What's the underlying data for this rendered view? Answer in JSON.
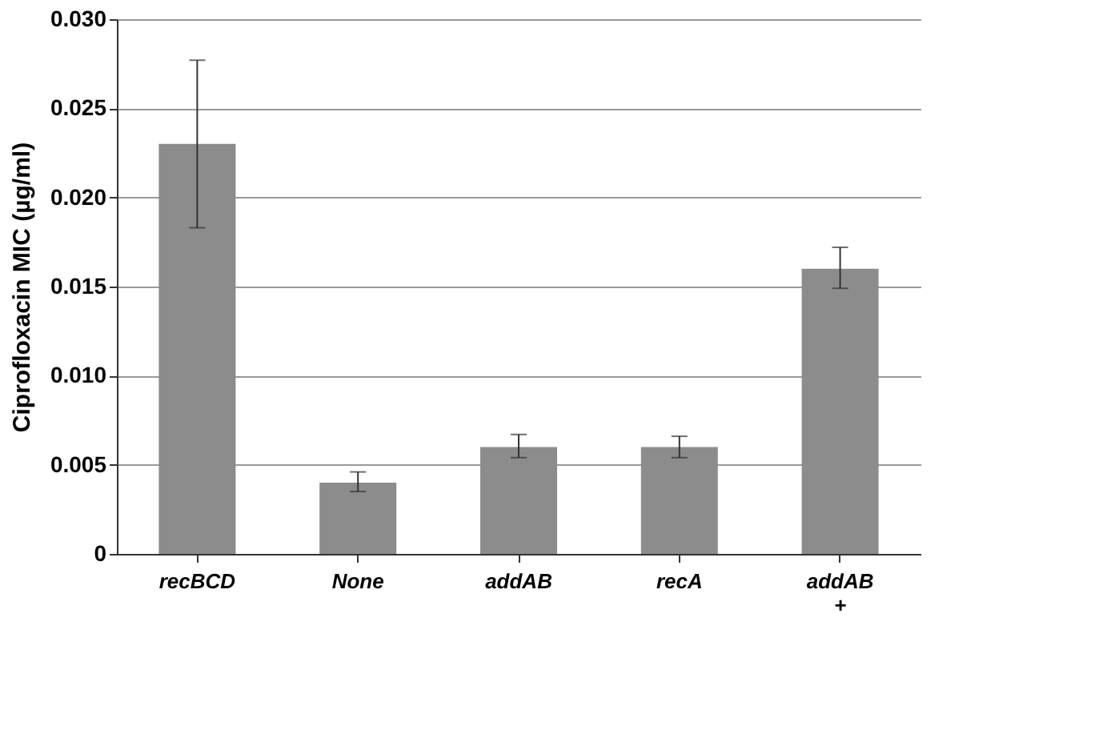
{
  "chart_data": {
    "type": "bar",
    "ylabel": "Ciprofloxacin MIC (µg/ml)",
    "categories": [
      "recBCD",
      "None",
      "addAB",
      "recA",
      "addAB +"
    ],
    "values": [
      0.023,
      0.004,
      0.006,
      0.006,
      0.016
    ],
    "color": "#8c8c8c",
    "errors": [
      [
        0.0183,
        0.0277
      ],
      [
        0.0035,
        0.0046
      ],
      [
        0.0054,
        0.0067
      ],
      [
        0.0054,
        0.0066
      ],
      [
        0.0149,
        0.0172
      ]
    ],
    "ylim": [
      0,
      0.03
    ],
    "yticks": [
      0,
      {
        "value": 0.005,
        "label": "0.005"
      },
      {
        "value": 0.01,
        "label": "0.010"
      },
      {
        "value": 0.015,
        "label": "0.015"
      },
      {
        "value": 0.02,
        "label": "0.020"
      },
      {
        "value": 0.025,
        "label": "0.025"
      },
      {
        "value": 0.03,
        "label": "0.030"
      }
    ],
    "grid": "y"
  }
}
